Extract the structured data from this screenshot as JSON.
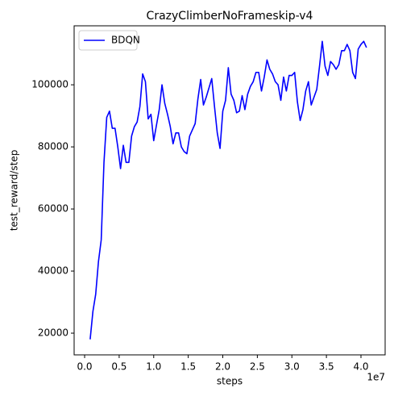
{
  "chart_data": {
    "type": "line",
    "title": "CrazyClimberNoFrameskip-v4",
    "xlabel": "steps",
    "ylabel": "test_reward/step",
    "x_offset_label": "1e7",
    "legend": "upper left",
    "grid": false,
    "x": [
      800000,
      1200000,
      1600000,
      2000000,
      2400000,
      2800000,
      3200000,
      3600000,
      4000000,
      4400000,
      4800000,
      5200000,
      5600000,
      6000000,
      6400000,
      6800000,
      7200000,
      7600000,
      8000000,
      8400000,
      8800000,
      9200000,
      9600000,
      10000000,
      10400000,
      10800000,
      11200000,
      11600000,
      12000000,
      12400000,
      12800000,
      13200000,
      13600000,
      14000000,
      14400000,
      14800000,
      15200000,
      15600000,
      16000000,
      16400000,
      16800000,
      17200000,
      17600000,
      18000000,
      18400000,
      18800000,
      19200000,
      19600000,
      20000000,
      20400000,
      20800000,
      21200000,
      21600000,
      22000000,
      22400000,
      22800000,
      23200000,
      23600000,
      24000000,
      24400000,
      24800000,
      25200000,
      25600000,
      26000000,
      26400000,
      26800000,
      27200000,
      27600000,
      28000000,
      28400000,
      28800000,
      29200000,
      29600000,
      30000000,
      30400000,
      30800000,
      31200000,
      31600000,
      32000000,
      32400000,
      32800000,
      33200000,
      33600000,
      34000000,
      34400000,
      34800000,
      35200000,
      35600000,
      36000000,
      36400000,
      36800000,
      37200000,
      37600000,
      38000000,
      38400000,
      38800000,
      39200000,
      39600000,
      40000000,
      40400000,
      40800000
    ],
    "series": [
      {
        "name": "BDQN",
        "color": "#0000ff",
        "values": [
          18000,
          27000,
          32500,
          43000,
          50000,
          75000,
          89500,
          91500,
          86000,
          86000,
          80000,
          73000,
          80500,
          75000,
          75000,
          83500,
          86500,
          88000,
          93000,
          103500,
          101000,
          89000,
          90500,
          82000,
          87000,
          92000,
          100000,
          94000,
          90500,
          86500,
          81000,
          84500,
          84500,
          80000,
          78500,
          77800,
          83500,
          85500,
          87500,
          95500,
          101700,
          93500,
          96000,
          99000,
          102000,
          93000,
          84500,
          79500,
          91500,
          95000,
          105500,
          97000,
          95000,
          91000,
          91500,
          96500,
          92000,
          97000,
          99500,
          101000,
          104000,
          104000,
          98000,
          102500,
          108000,
          105000,
          103500,
          101000,
          100000,
          95000,
          102500,
          98000,
          103000,
          103000,
          104000,
          94500,
          88500,
          92000,
          98000,
          101000,
          93500,
          96000,
          98500,
          106000,
          114000,
          106000,
          103000,
          107500,
          106500,
          105000,
          106500,
          111000,
          111000,
          113000,
          111000,
          104000,
          102000,
          111500,
          113000,
          114000,
          112000
        ]
      }
    ],
    "xlim": [
      -1520000,
      43500000
    ],
    "xticks": [
      {
        "value": 0,
        "label": "0.0"
      },
      {
        "value": 5000000,
        "label": "0.5"
      },
      {
        "value": 10000000,
        "label": "1.0"
      },
      {
        "value": 15000000,
        "label": "1.5"
      },
      {
        "value": 20000000,
        "label": "2.0"
      },
      {
        "value": 25000000,
        "label": "2.5"
      },
      {
        "value": 30000000,
        "label": "3.0"
      },
      {
        "value": 35000000,
        "label": "3.5"
      },
      {
        "value": 40000000,
        "label": "4.0"
      }
    ],
    "ylim": [
      13000,
      119000
    ],
    "yticks": [
      20000,
      40000,
      60000,
      80000,
      100000
    ]
  }
}
